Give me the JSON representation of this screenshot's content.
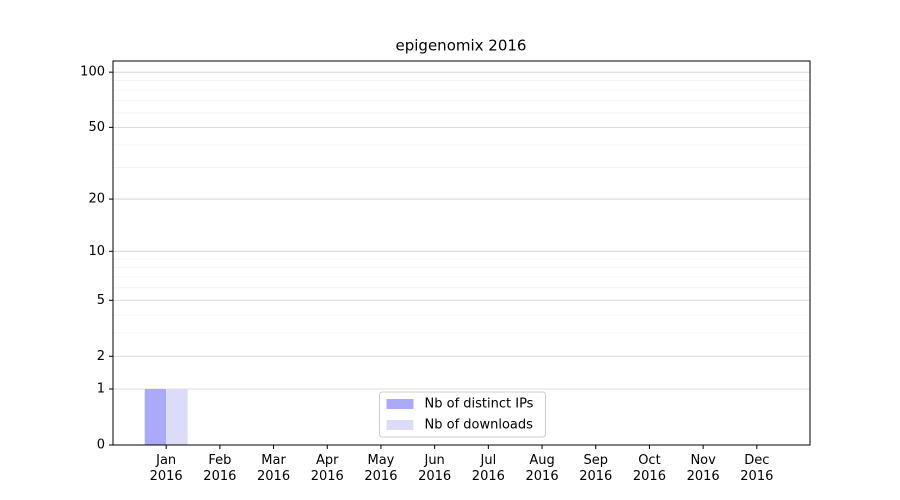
{
  "chart_data": {
    "type": "bar",
    "title": "epigenomix 2016",
    "categories": [
      "Jan\n2016",
      "Feb\n2016",
      "Mar\n2016",
      "Apr\n2016",
      "May\n2016",
      "Jun\n2016",
      "Jul\n2016",
      "Aug\n2016",
      "Sep\n2016",
      "Oct\n2016",
      "Nov\n2016",
      "Dec\n2016"
    ],
    "series": [
      {
        "name": "Nb of distinct IPs",
        "color": "#aaaaf8",
        "values": [
          1,
          0,
          0,
          0,
          0,
          0,
          0,
          0,
          0,
          0,
          0,
          0
        ]
      },
      {
        "name": "Nb of downloads",
        "color": "#dcdcfa",
        "values": [
          1,
          0,
          0,
          0,
          0,
          0,
          0,
          0,
          0,
          0,
          0,
          0
        ]
      }
    ],
    "yscale": "log1p",
    "ylim": [
      0,
      115
    ],
    "yticks": [
      0,
      1,
      2,
      5,
      10,
      20,
      50,
      100
    ],
    "minor_yticks": [
      3,
      4,
      6,
      7,
      8,
      9,
      30,
      40,
      60,
      70,
      80,
      90
    ],
    "grid": true,
    "legend": "lower center"
  }
}
